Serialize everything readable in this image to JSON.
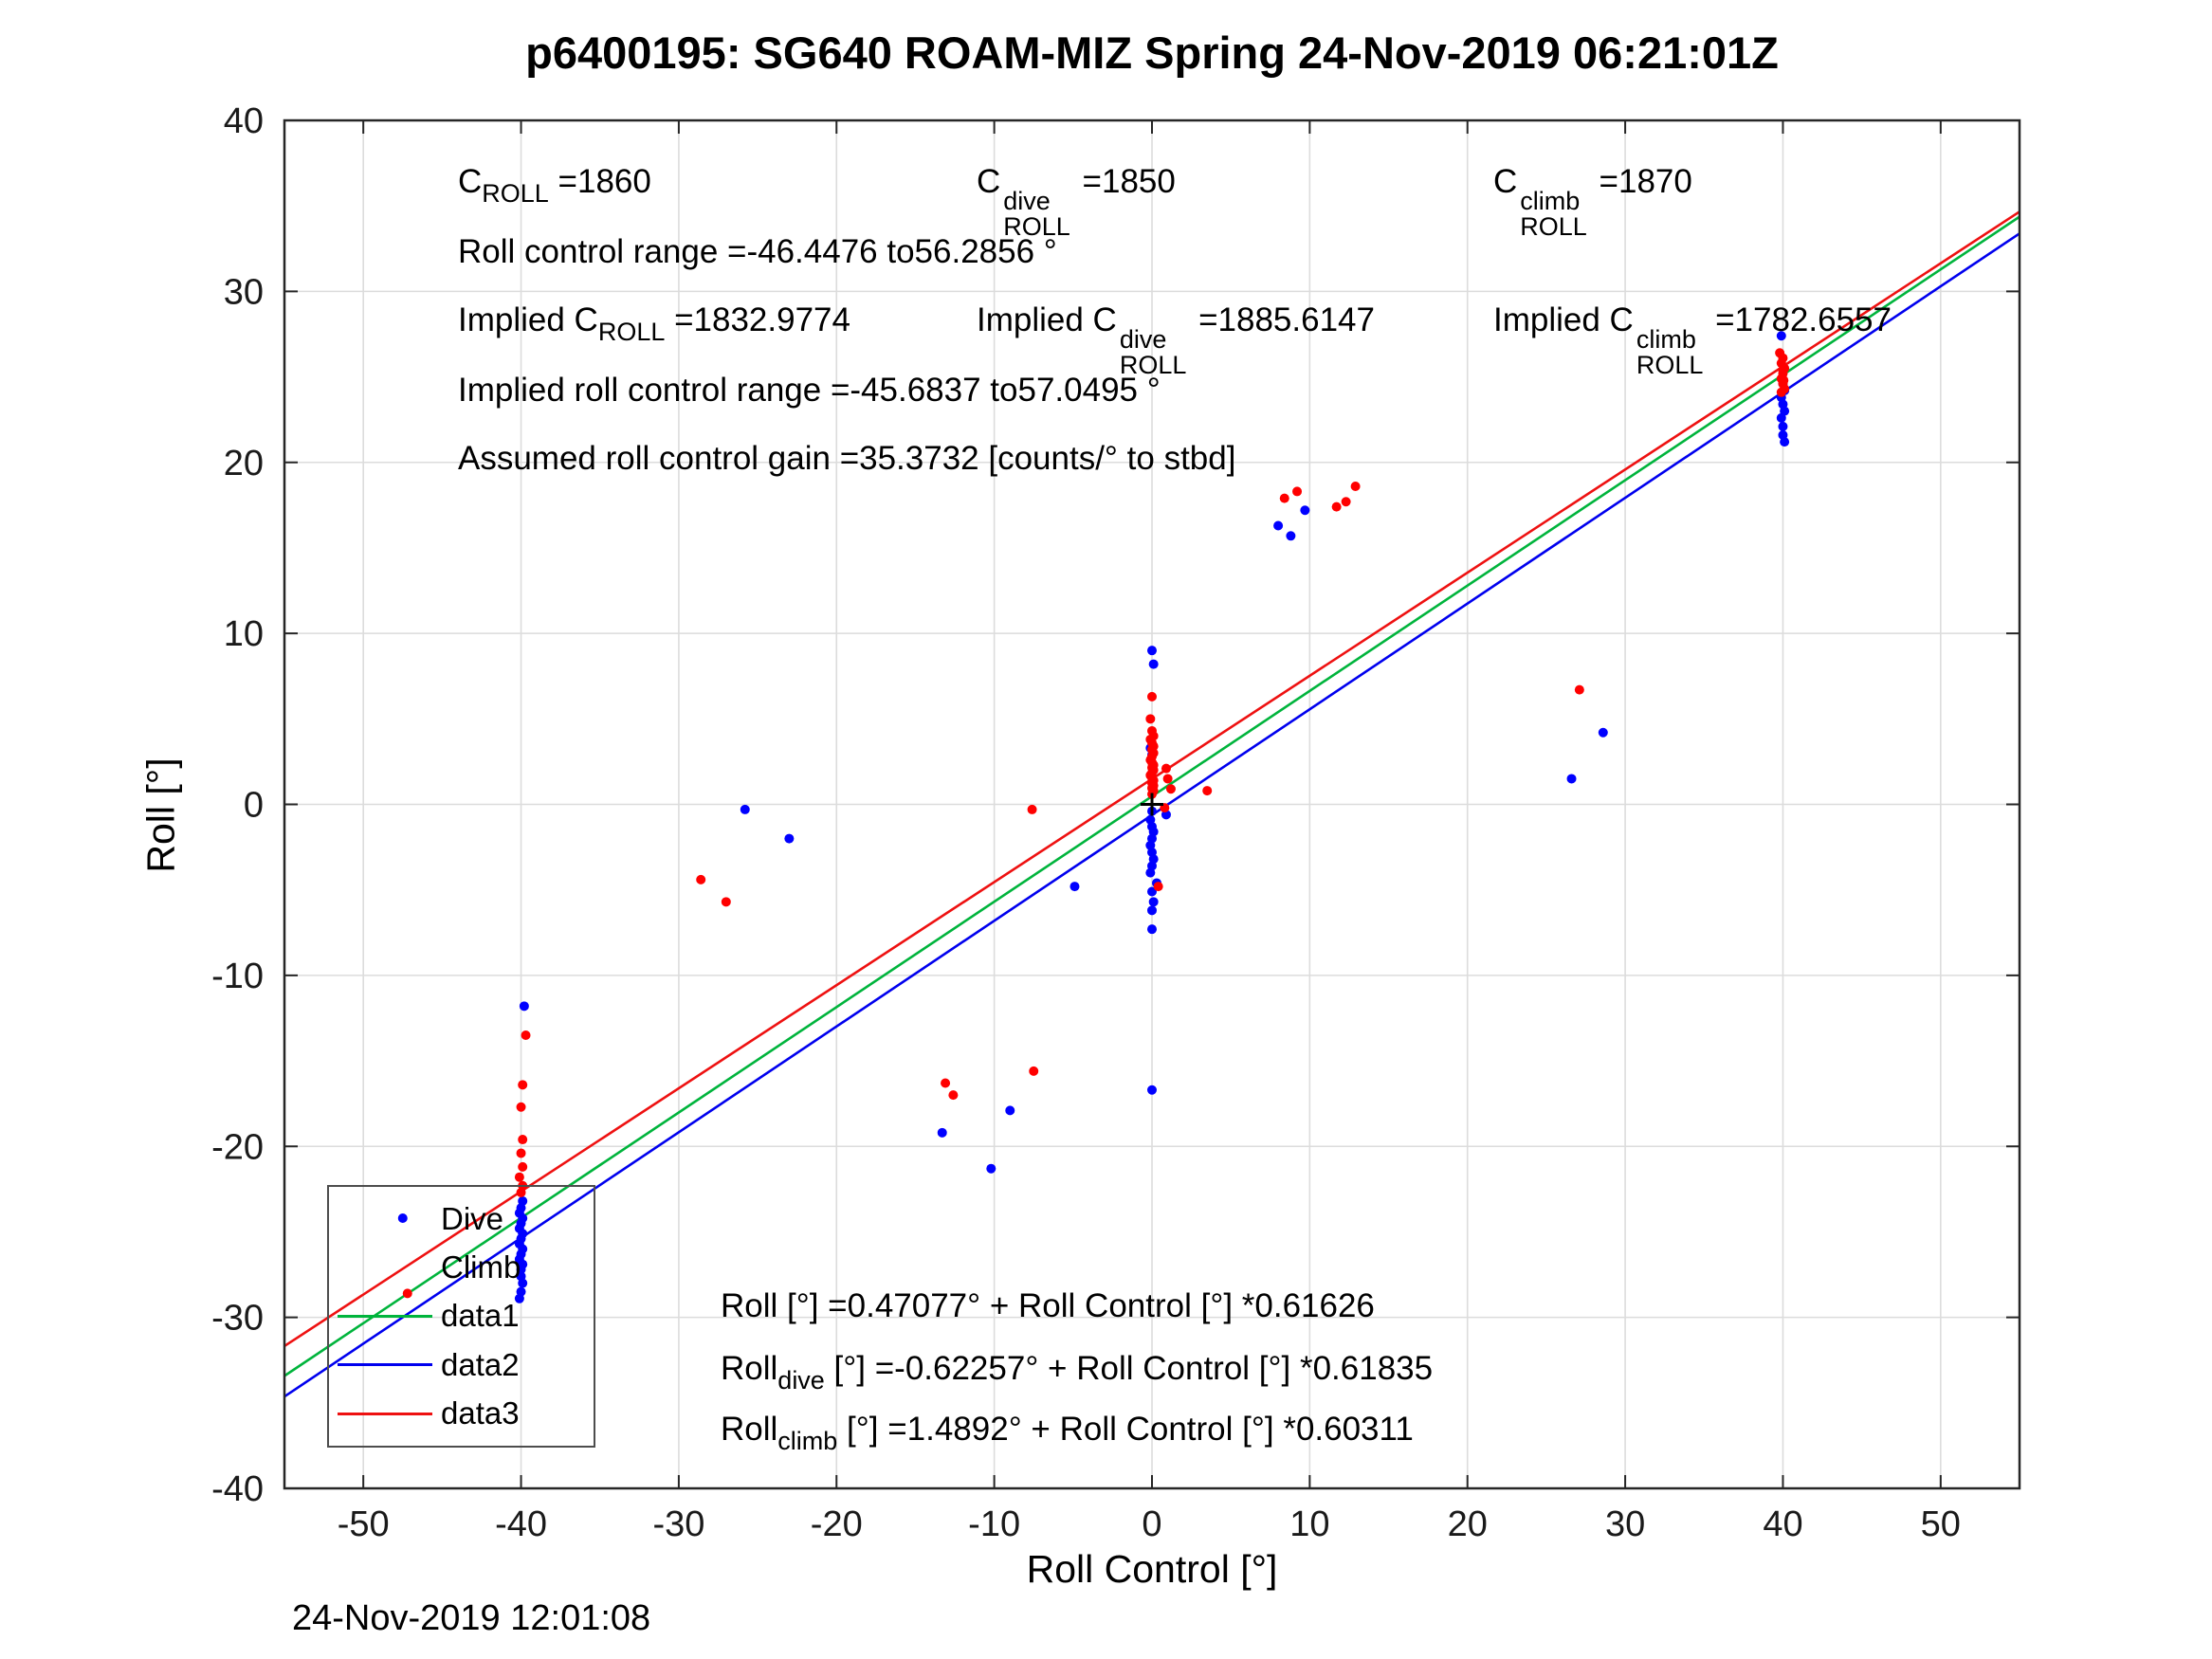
{
  "footer_timestamp": "24-Nov-2019 12:01:08",
  "annotations": {
    "c_roll": {
      "pre": "C",
      "sub": "ROLL",
      "val": " =1860"
    },
    "c_dive": {
      "pre": "C",
      "sup": "dive",
      "sub": "ROLL",
      "val": " =1850"
    },
    "c_climb": {
      "pre": "C",
      "sup": "climb",
      "sub": "ROLL",
      "val": " =1870"
    },
    "roll_range": "Roll control range =-46.4476 to56.2856 °",
    "implied_c": {
      "pre": "Implied C",
      "sub": "ROLL",
      "val": " =1832.9774"
    },
    "implied_c_dive": {
      "pre": "Implied C",
      "sup": "dive",
      "sub": "ROLL",
      "val": " =1885.6147"
    },
    "implied_c_climb": {
      "pre": "Implied C",
      "sup": "climb",
      "sub": "ROLL",
      "val": " =1782.6557"
    },
    "implied_range": "Implied roll control range =-45.6837 to57.0495 °",
    "gain": "Assumed roll control gain =35.3732 [counts/° to stbd]",
    "eq1": {
      "pre": "Roll [°] =0.47077° + Roll Control [°] *0.61626"
    },
    "eq2": {
      "pre": "Roll",
      "sub": "dive",
      "rest": " [°] =-0.62257° + Roll Control [°] *0.61835"
    },
    "eq3": {
      "pre": "Roll",
      "sub": "climb",
      "rest": " [°] =1.4892° + Roll Control [°] *0.60311"
    }
  },
  "legend": {
    "items": [
      {
        "label": "Dive",
        "sample": "none"
      },
      {
        "label": "Climb",
        "sample": "none"
      },
      {
        "label": "data1",
        "sample": "line",
        "line_index": 0
      },
      {
        "label": "data2",
        "sample": "line",
        "line_index": 1
      },
      {
        "label": "data3",
        "sample": "line",
        "line_index": 2
      }
    ]
  },
  "chart_data": {
    "type": "scatter",
    "title": "p6400195: SG640 ROAM-MIZ Spring 24-Nov-2019 06:21:01Z",
    "xlabel": "Roll Control [°]",
    "ylabel": "Roll [°]",
    "xlim": [
      -55,
      55
    ],
    "ylim": [
      -40,
      40
    ],
    "xticks": [
      -50,
      -40,
      -30,
      -20,
      -10,
      0,
      10,
      20,
      30,
      40,
      50
    ],
    "yticks": [
      -40,
      -30,
      -20,
      -10,
      0,
      10,
      20,
      30,
      40
    ],
    "grid": true,
    "legend_position": "lower-left",
    "fit_lines": [
      {
        "name": "data1",
        "color": "#00b43c",
        "intercept": 0.47077,
        "slope": 0.61626
      },
      {
        "name": "data2",
        "color": "#0000ee",
        "intercept": -0.62257,
        "slope": 0.61835
      },
      {
        "name": "data3",
        "color": "#ee1111",
        "intercept": 1.4892,
        "slope": 0.60311
      }
    ],
    "series": [
      {
        "name": "Dive",
        "color": "#0000ff",
        "marker": "dot",
        "points": [
          [
            -47.5,
            -24.2
          ],
          [
            -39.8,
            -11.8
          ],
          [
            -39.9,
            -23.2
          ],
          [
            -40,
            -23.6
          ],
          [
            -40.1,
            -23.9
          ],
          [
            -39.9,
            -24.2
          ],
          [
            -40,
            -24.5
          ],
          [
            -40.1,
            -24.8
          ],
          [
            -39.9,
            -25.1
          ],
          [
            -40,
            -25.4
          ],
          [
            -40.1,
            -25.7
          ],
          [
            -39.9,
            -26
          ],
          [
            -40,
            -26.3
          ],
          [
            -40.1,
            -26.6
          ],
          [
            -39.9,
            -26.9
          ],
          [
            -40,
            -27.2
          ],
          [
            -40,
            -27.6
          ],
          [
            -39.9,
            -28
          ],
          [
            -40,
            -28.5
          ],
          [
            -40.1,
            -28.9
          ],
          [
            -25.8,
            -0.3
          ],
          [
            -23,
            -2
          ],
          [
            -13.3,
            -19.2
          ],
          [
            -10.2,
            -21.3
          ],
          [
            -9,
            -17.9
          ],
          [
            -4.9,
            -4.8
          ],
          [
            0,
            9
          ],
          [
            0.1,
            8.2
          ],
          [
            -0.1,
            3.3
          ],
          [
            0,
            2.9
          ],
          [
            0,
            -0.4
          ],
          [
            -0.1,
            -0.9
          ],
          [
            0,
            -1.3
          ],
          [
            0.1,
            -1.6
          ],
          [
            0,
            -2
          ],
          [
            -0.1,
            -2.4
          ],
          [
            0,
            -2.8
          ],
          [
            0.1,
            -3.2
          ],
          [
            0,
            -3.6
          ],
          [
            -0.1,
            -4
          ],
          [
            0.3,
            -4.6
          ],
          [
            0,
            -5.1
          ],
          [
            0.1,
            -5.7
          ],
          [
            0,
            -6.2
          ],
          [
            0,
            -7.3
          ],
          [
            0.9,
            -0.6
          ],
          [
            0,
            -16.7
          ],
          [
            8,
            16.3
          ],
          [
            9.7,
            17.2
          ],
          [
            8.8,
            15.7
          ],
          [
            26.6,
            1.5
          ],
          [
            28.6,
            4.2
          ],
          [
            39.9,
            27.4
          ],
          [
            40,
            24.6
          ],
          [
            40.1,
            24.2
          ],
          [
            39.9,
            23.8
          ],
          [
            40,
            23.4
          ],
          [
            40.1,
            23
          ],
          [
            39.9,
            22.6
          ],
          [
            40,
            22.1
          ],
          [
            40,
            21.6
          ],
          [
            40.1,
            21.2
          ]
        ]
      },
      {
        "name": "Climb",
        "color": "#ff0000",
        "marker": "dot",
        "points": [
          [
            -47.2,
            -28.6
          ],
          [
            -39.7,
            -13.5
          ],
          [
            -39.9,
            -16.4
          ],
          [
            -40,
            -17.7
          ],
          [
            -39.9,
            -19.6
          ],
          [
            -40,
            -20.4
          ],
          [
            -39.9,
            -21.2
          ],
          [
            -40.1,
            -21.8
          ],
          [
            -39.9,
            -22.3
          ],
          [
            -40,
            -22.7
          ],
          [
            -28.6,
            -4.4
          ],
          [
            -27,
            -5.7
          ],
          [
            -13.1,
            -16.3
          ],
          [
            -12.6,
            -17
          ],
          [
            -7.5,
            -15.6
          ],
          [
            -7.6,
            -0.3
          ],
          [
            0,
            6.3
          ],
          [
            -0.1,
            5
          ],
          [
            0,
            4.3
          ],
          [
            0.1,
            4
          ],
          [
            -0.1,
            3.8
          ],
          [
            0,
            3.6
          ],
          [
            0.1,
            3.4
          ],
          [
            0,
            3.2
          ],
          [
            0.1,
            3
          ],
          [
            0,
            2.8
          ],
          [
            -0.1,
            2.6
          ],
          [
            0,
            2.45
          ],
          [
            0.1,
            2.3
          ],
          [
            0,
            2.15
          ],
          [
            0.1,
            2
          ],
          [
            0,
            1.85
          ],
          [
            -0.1,
            1.7
          ],
          [
            0,
            1.55
          ],
          [
            0.1,
            1.4
          ],
          [
            0,
            1.25
          ],
          [
            0.1,
            1.1
          ],
          [
            0,
            0.95
          ],
          [
            0.1,
            0.8
          ],
          [
            0,
            0.6
          ],
          [
            0.9,
            2.1
          ],
          [
            1,
            1.5
          ],
          [
            1.2,
            0.9
          ],
          [
            0.8,
            -0.2
          ],
          [
            3.5,
            0.8
          ],
          [
            0.4,
            -4.8
          ],
          [
            8.4,
            17.9
          ],
          [
            9.2,
            18.3
          ],
          [
            12.9,
            18.6
          ],
          [
            11.7,
            17.4
          ],
          [
            12.3,
            17.7
          ],
          [
            27.1,
            6.7
          ],
          [
            39.8,
            26.4
          ],
          [
            40,
            26.1
          ],
          [
            39.9,
            25.8
          ],
          [
            40.1,
            25.5
          ],
          [
            40,
            25.2
          ],
          [
            39.9,
            24.9
          ],
          [
            40,
            24.6
          ],
          [
            40.1,
            24.3
          ],
          [
            39.9,
            24.1
          ],
          [
            40,
            25.4
          ],
          [
            40.05,
            24.8
          ]
        ]
      }
    ],
    "reference_marker": {
      "shape": "plus",
      "color": "#000000",
      "x": 0,
      "y": 0
    }
  }
}
